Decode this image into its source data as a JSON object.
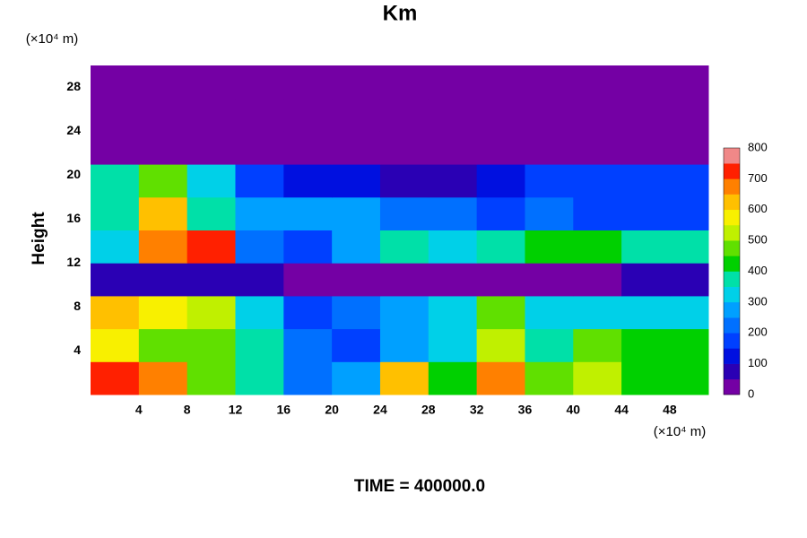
{
  "chart_data": {
    "type": "heatmap",
    "title": "Km",
    "x_unit": "(×10⁴ m)",
    "y_unit": "(×10⁴ m)",
    "y_label": "Height",
    "footer": "TIME = 400000.0",
    "xlim": [
      0,
      51.2
    ],
    "ylim": [
      0,
      30
    ],
    "xticks": [
      4,
      8,
      12,
      16,
      20,
      24,
      28,
      32,
      36,
      40,
      44,
      48
    ],
    "yticks": [
      4,
      8,
      12,
      16,
      20,
      24,
      28
    ],
    "xbins": [
      0,
      4,
      8,
      12,
      16,
      20,
      24,
      28,
      32,
      36,
      40,
      44,
      48,
      51.2
    ],
    "ybins": [
      0,
      3,
      6,
      9,
      12,
      15,
      18,
      21,
      24,
      27,
      30
    ],
    "z": [
      [
        700,
        650,
        450,
        350,
        200,
        250,
        600,
        400,
        650,
        450,
        500,
        400,
        400
      ],
      [
        550,
        450,
        450,
        350,
        200,
        150,
        250,
        300,
        500,
        350,
        450,
        400,
        400
      ],
      [
        600,
        550,
        500,
        300,
        150,
        200,
        250,
        300,
        450,
        300,
        300,
        300,
        300
      ],
      [
        50,
        50,
        50,
        50,
        0,
        0,
        0,
        0,
        0,
        0,
        0,
        50,
        50
      ],
      [
        300,
        650,
        700,
        200,
        150,
        250,
        350,
        300,
        350,
        400,
        400,
        350,
        350
      ],
      [
        350,
        600,
        350,
        250,
        250,
        250,
        200,
        200,
        150,
        200,
        150,
        150,
        150
      ],
      [
        350,
        450,
        300,
        150,
        100,
        100,
        50,
        50,
        100,
        150,
        150,
        150,
        150
      ],
      [
        0,
        0,
        0,
        0,
        0,
        0,
        0,
        0,
        0,
        0,
        0,
        0,
        0
      ],
      [
        0,
        0,
        0,
        0,
        0,
        0,
        0,
        0,
        0,
        0,
        0,
        0,
        0
      ],
      [
        0,
        0,
        0,
        0,
        0,
        0,
        0,
        0,
        0,
        0,
        0,
        0,
        0
      ]
    ],
    "zlim": [
      0,
      800
    ],
    "zticks": [
      0,
      100,
      200,
      300,
      400,
      500,
      600,
      700,
      800
    ],
    "colors": [
      "#7400a4",
      "#2a00b4",
      "#0010e0",
      "#0040ff",
      "#0070ff",
      "#00a0ff",
      "#00d0e8",
      "#00e0a8",
      "#00d000",
      "#60e000",
      "#c0f000",
      "#f8f000",
      "#ffc000",
      "#ff8000",
      "#ff2000",
      "#f08888"
    ]
  }
}
